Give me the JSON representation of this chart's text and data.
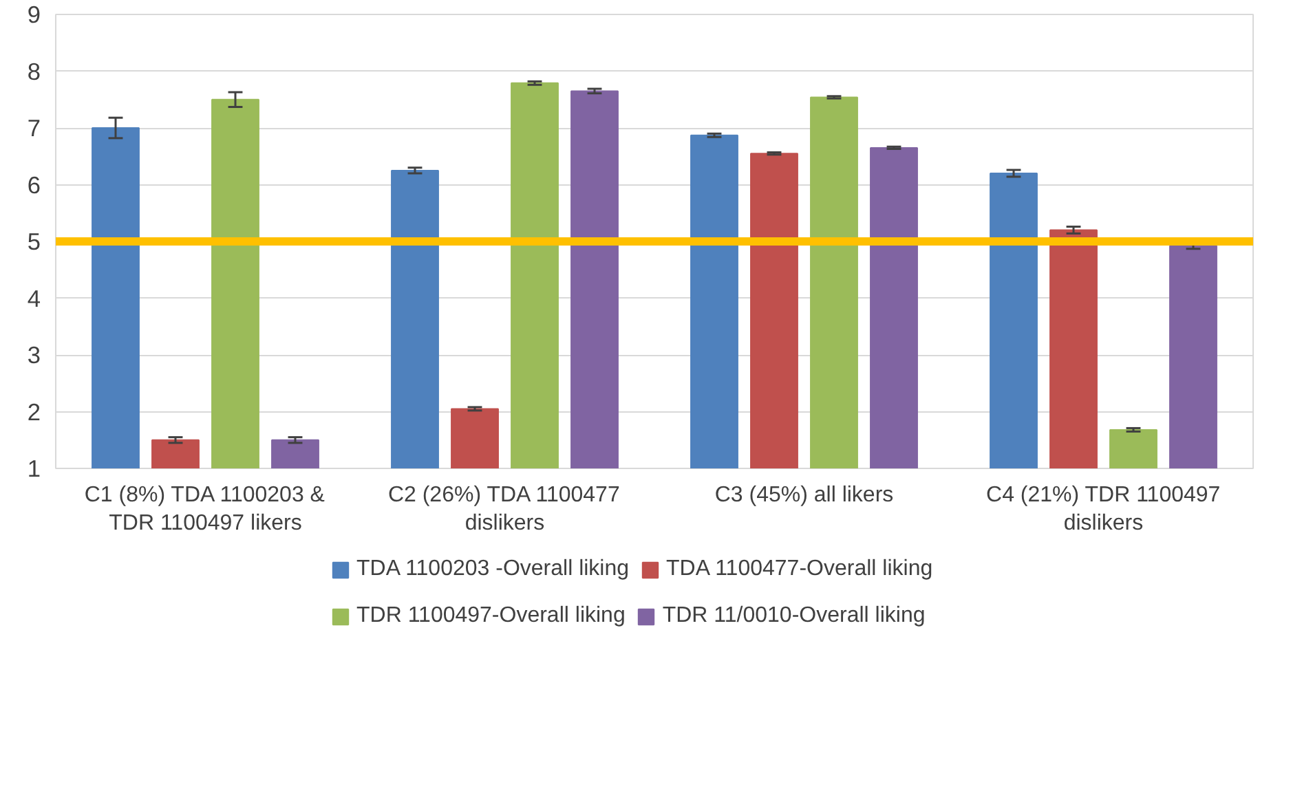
{
  "chart_data": {
    "type": "bar",
    "categories": [
      "C1 (8%) TDA 1100203 & TDR 1100497 likers",
      "C2 (26%) TDA 1100477 dislikers",
      "C3 (45%) all likers",
      "C4 (21%) TDR 1100497 dislikers"
    ],
    "series": [
      {
        "name": "TDA 1100203 -Overall liking",
        "color": "#4f81bd",
        "values": [
          7.0,
          6.25,
          6.87,
          6.2
        ],
        "errors": [
          0.18,
          0.05,
          0.03,
          0.06
        ]
      },
      {
        "name": "TDA 1100477-Overall liking",
        "color": "#c0504d",
        "values": [
          1.5,
          2.05,
          6.55,
          5.2
        ],
        "errors": [
          0.05,
          0.03,
          0.02,
          0.06
        ]
      },
      {
        "name": "TDR 1100497-Overall liking",
        "color": "#9bbb59",
        "values": [
          7.5,
          7.79,
          7.54,
          1.68
        ],
        "errors": [
          0.13,
          0.03,
          0.02,
          0.03
        ]
      },
      {
        "name": "TDR 11/0010-Overall liking",
        "color": "#8064a2",
        "values": [
          1.5,
          7.65,
          6.65,
          4.92
        ],
        "errors": [
          0.05,
          0.04,
          0.02,
          0.05
        ]
      }
    ],
    "ylim": [
      1,
      9
    ],
    "yticks": [
      1,
      2,
      3,
      4,
      5,
      6,
      7,
      8,
      9
    ],
    "grid": "y",
    "legend": "bottom",
    "ref_lines": [
      {
        "axis": "y",
        "value": 5,
        "color": "#ffc000"
      }
    ]
  }
}
